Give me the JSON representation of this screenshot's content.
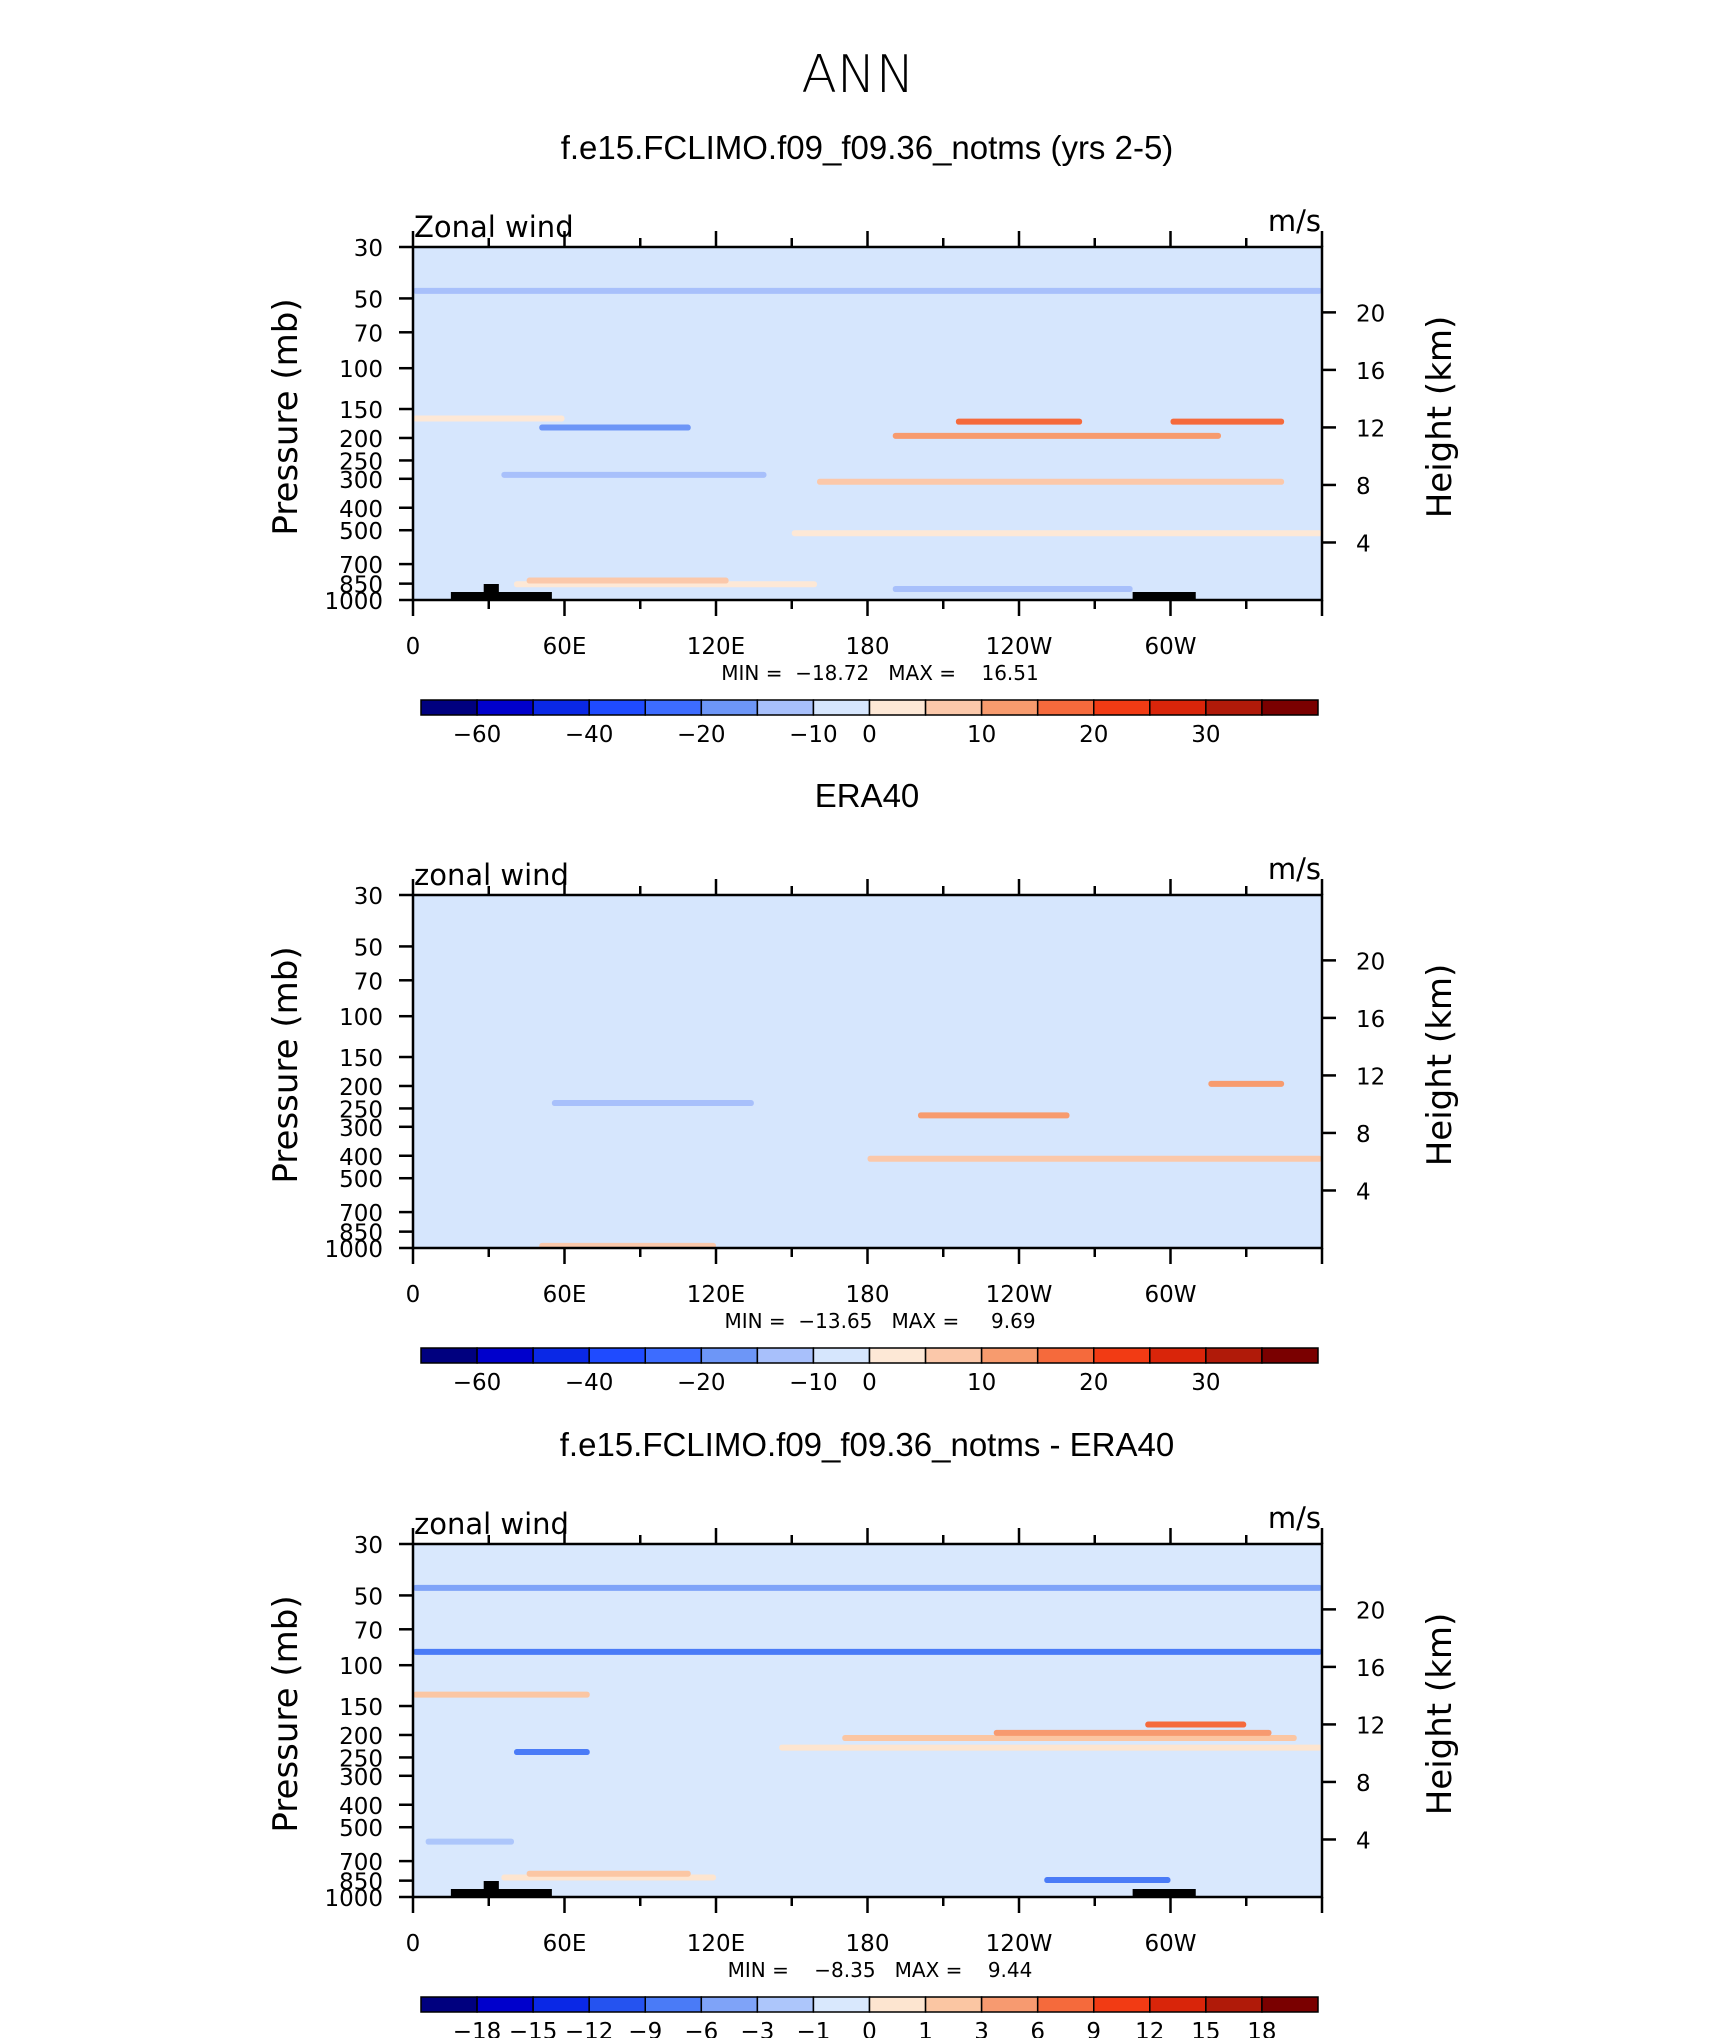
{
  "figure": {
    "title": "ANN"
  },
  "palettes": {
    "abs": [
      "#00007f",
      "#0000cc",
      "#0a28e6",
      "#1f4bff",
      "#3d6cff",
      "#6d96f7",
      "#a8c0fb",
      "#d6e6fd",
      "#fde8d6",
      "#fbc8aa",
      "#f79b6e",
      "#f56a3c",
      "#f23b14",
      "#d9250a",
      "#b01a09",
      "#7a0000"
    ],
    "diff": [
      "#00007f",
      "#0000cc",
      "#0a28e6",
      "#2553f0",
      "#4a7bf7",
      "#7fa3f8",
      "#adc6fb",
      "#d9e8fd",
      "#fde5d0",
      "#fbc6a3",
      "#f79a70",
      "#f56a3c",
      "#f23b14",
      "#d9250a",
      "#b01a09",
      "#7a0000"
    ]
  },
  "chart_data": [
    {
      "type": "heatmap",
      "title": "f.e15.FCLIMO.f09_f09.36_notms (yrs 2-5)",
      "label_left": "Zonal wind",
      "label_right": "m/s",
      "ylabel": "Pressure (mb)",
      "ylabel_right": "Height (km)",
      "x_ticks": [
        "0",
        "60E",
        "120E",
        "180",
        "120W",
        "60W"
      ],
      "y_ticks": [
        "30",
        "50",
        "70",
        "100",
        "150",
        "200",
        "250",
        "300",
        "400",
        "500",
        "700",
        "850",
        "1000"
      ],
      "y_ticks_right": [
        "20",
        "16",
        "12",
        "8",
        "4"
      ],
      "x_range": [
        0,
        360
      ],
      "y_range_mb": [
        1000,
        30
      ],
      "y_scale": "log",
      "min_max": "MIN =  −18.72   MAX =    16.51",
      "stats": {
        "min": -18.72,
        "max": 16.51
      },
      "colorbar_labels": [
        "−60",
        "−40",
        "−20",
        "−10",
        "0",
        "10",
        "20",
        "30"
      ],
      "palette": "abs",
      "topography": true,
      "regions": [
        {
          "lon": [
            0,
            360
          ],
          "p": [
            30,
            45
          ],
          "level": 6
        },
        {
          "lon": [
            0,
            360
          ],
          "p": [
            45,
            1000
          ],
          "level": 7
        },
        {
          "lon": [
            0,
            60
          ],
          "p": [
            95,
            160
          ],
          "level": 8
        },
        {
          "lon": [
            150,
            360
          ],
          "p": [
            95,
            500
          ],
          "level": 8
        },
        {
          "lon": [
            160,
            345
          ],
          "p": [
            105,
            300
          ],
          "level": 9
        },
        {
          "lon": [
            190,
            320
          ],
          "p": [
            120,
            190
          ],
          "level": 10
        },
        {
          "lon": [
            215,
            265
          ],
          "p": [
            130,
            165
          ],
          "level": 11
        },
        {
          "lon": [
            300,
            345
          ],
          "p": [
            130,
            165
          ],
          "level": 11
        },
        {
          "lon": [
            35,
            140
          ],
          "p": [
            110,
            280
          ],
          "level": 6
        },
        {
          "lon": [
            50,
            110
          ],
          "p": [
            135,
            175
          ],
          "level": 5
        },
        {
          "lon": [
            40,
            160
          ],
          "p": [
            480,
            830
          ],
          "level": 8
        },
        {
          "lon": [
            45,
            125
          ],
          "p": [
            580,
            800
          ],
          "level": 9
        },
        {
          "lon": [
            190,
            285
          ],
          "p": [
            760,
            870
          ],
          "level": 6
        }
      ]
    },
    {
      "type": "heatmap",
      "title": "ERA40",
      "label_left": "zonal wind",
      "label_right": "m/s",
      "ylabel": "Pressure (mb)",
      "ylabel_right": "Height (km)",
      "x_ticks": [
        "0",
        "60E",
        "120E",
        "180",
        "120W",
        "60W"
      ],
      "y_ticks": [
        "30",
        "50",
        "70",
        "100",
        "150",
        "200",
        "250",
        "300",
        "400",
        "500",
        "700",
        "850",
        "1000"
      ],
      "y_ticks_right": [
        "20",
        "16",
        "12",
        "8",
        "4"
      ],
      "x_range": [
        0,
        360
      ],
      "y_range_mb": [
        1000,
        30
      ],
      "y_scale": "log",
      "min_max": "MIN =  −13.65   MAX =     9.69",
      "stats": {
        "min": -13.65,
        "max": 9.69
      },
      "colorbar_labels": [
        "−60",
        "−40",
        "−20",
        "−10",
        "0",
        "10",
        "20",
        "30"
      ],
      "palette": "abs",
      "topography": false,
      "regions": [
        {
          "lon": [
            0,
            360
          ],
          "p": [
            30,
            1000
          ],
          "level": 8
        },
        {
          "lon": [
            0,
            360
          ],
          "p": [
            30,
            45
          ],
          "level": 7
        },
        {
          "lon": [
            15,
            160
          ],
          "p": [
            100,
            450
          ],
          "level": 7
        },
        {
          "lon": [
            55,
            135
          ],
          "p": [
            120,
            230
          ],
          "level": 6
        },
        {
          "lon": [
            180,
            360
          ],
          "p": [
            80,
            400
          ],
          "level": 9
        },
        {
          "lon": [
            200,
            260
          ],
          "p": [
            100,
            260
          ],
          "level": 10
        },
        {
          "lon": [
            315,
            345
          ],
          "p": [
            120,
            190
          ],
          "level": 10
        },
        {
          "lon": [
            50,
            120
          ],
          "p": [
            550,
            950
          ],
          "level": 9
        },
        {
          "lon": [
            180,
            255
          ],
          "p": [
            780,
            1000
          ],
          "level": 7
        },
        {
          "lon": [
            295,
            355
          ],
          "p": [
            620,
            920
          ],
          "level": 7
        }
      ]
    },
    {
      "type": "heatmap",
      "title": "f.e15.FCLIMO.f09_f09.36_notms - ERA40",
      "label_left": "zonal wind",
      "label_right": "m/s",
      "ylabel": "Pressure (mb)",
      "ylabel_right": "Height (km)",
      "x_ticks": [
        "0",
        "60E",
        "120E",
        "180",
        "120W",
        "60W"
      ],
      "y_ticks": [
        "30",
        "50",
        "70",
        "100",
        "150",
        "200",
        "250",
        "300",
        "400",
        "500",
        "700",
        "850",
        "1000"
      ],
      "y_ticks_right": [
        "20",
        "16",
        "12",
        "8",
        "4"
      ],
      "x_range": [
        0,
        360
      ],
      "y_range_mb": [
        1000,
        30
      ],
      "y_scale": "log",
      "min_max": "MIN =    −8.35   MAX =    9.44",
      "stats": {
        "min": -8.35,
        "max": 9.44
      },
      "colorbar_labels": [
        "−18",
        "−15",
        "−12",
        "−9",
        "−6",
        "−3",
        "−1",
        "0",
        "1",
        "3",
        "6",
        "9",
        "12",
        "15",
        "18"
      ],
      "palette": "diff",
      "topography": true,
      "regions": [
        {
          "lon": [
            0,
            360
          ],
          "p": [
            30,
            1000
          ],
          "level": 5
        },
        {
          "lon": [
            0,
            360
          ],
          "p": [
            50,
            85
          ],
          "level": 4
        },
        {
          "lon": [
            0,
            360
          ],
          "p": [
            30,
            45
          ],
          "level": 5
        },
        {
          "lon": [
            0,
            70
          ],
          "p": [
            90,
            130
          ],
          "level": 9
        },
        {
          "lon": [
            140,
            360
          ],
          "p": [
            95,
            300
          ],
          "level": 7
        },
        {
          "lon": [
            145,
            360
          ],
          "p": [
            105,
            220
          ],
          "level": 8
        },
        {
          "lon": [
            170,
            350
          ],
          "p": [
            120,
            200
          ],
          "level": 9
        },
        {
          "lon": [
            230,
            340
          ],
          "p": [
            125,
            190
          ],
          "level": 10
        },
        {
          "lon": [
            290,
            330
          ],
          "p": [
            135,
            175
          ],
          "level": 11
        },
        {
          "lon": [
            40,
            70
          ],
          "p": [
            160,
            230
          ],
          "level": 4
        },
        {
          "lon": [
            35,
            120
          ],
          "p": [
            640,
            800
          ],
          "level": 8
        },
        {
          "lon": [
            45,
            110
          ],
          "p": [
            660,
            770
          ],
          "level": 9
        },
        {
          "lon": [
            250,
            300
          ],
          "p": [
            700,
            820
          ],
          "level": 4
        },
        {
          "lon": [
            5,
            40
          ],
          "p": [
            420,
            560
          ],
          "level": 6
        }
      ]
    }
  ]
}
